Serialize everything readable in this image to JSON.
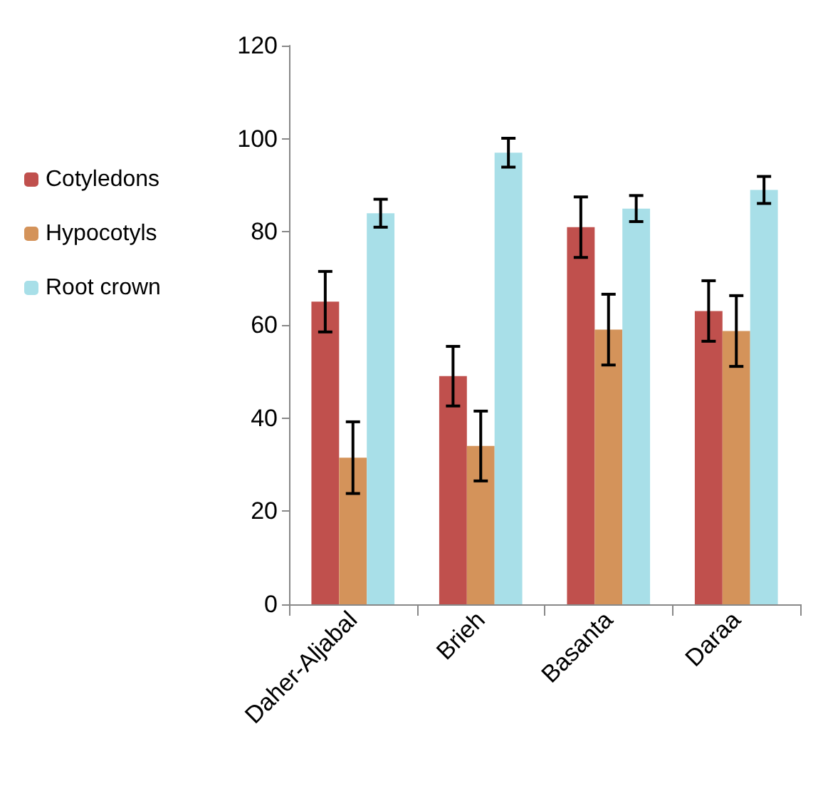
{
  "chart_data": {
    "type": "bar",
    "categories": [
      "Daher-Aljabal",
      "Brieh",
      "Basanta",
      "Daraa"
    ],
    "series": [
      {
        "name": "Cotyledons",
        "color": "#c0504d",
        "values": [
          65,
          49,
          81,
          63
        ],
        "errors": [
          6.5,
          6.4,
          6.5,
          6.5
        ]
      },
      {
        "name": "Hypocotyls",
        "color": "#d4935a",
        "values": [
          31.5,
          34,
          59,
          58.7
        ],
        "errors": [
          7.7,
          7.5,
          7.6,
          7.6
        ]
      },
      {
        "name": "Root crown",
        "color": "#a8dfe8",
        "values": [
          84,
          97,
          85,
          89
        ],
        "errors": [
          3,
          3.1,
          2.8,
          2.9
        ]
      }
    ],
    "ylim": [
      0,
      120
    ],
    "yticks": [
      0,
      20,
      40,
      60,
      80,
      100,
      120
    ],
    "grid": false,
    "legend": "left"
  }
}
